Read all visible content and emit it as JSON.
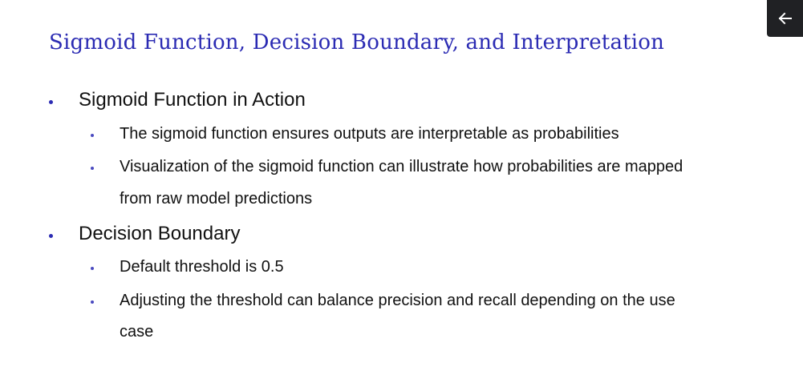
{
  "slide": {
    "title": "Sigmoid Function, Decision Boundary, and Interpretation",
    "sections": [
      {
        "heading": "Sigmoid Function in Action",
        "items": [
          "The sigmoid function ensures outputs are interpretable as probabilities",
          "Visualization of the sigmoid function can illustrate how probabilities are mapped",
          "from raw model predictions"
        ]
      },
      {
        "heading": "Decision Boundary",
        "items": [
          "Default threshold is 0.5",
          "Adjusting the threshold can balance precision and recall depending on the use",
          "case"
        ]
      }
    ]
  },
  "controls": {
    "back_icon": "arrow-left-icon"
  },
  "colors": {
    "accent": "#2b2bb3",
    "back_button_bg": "#202124"
  }
}
